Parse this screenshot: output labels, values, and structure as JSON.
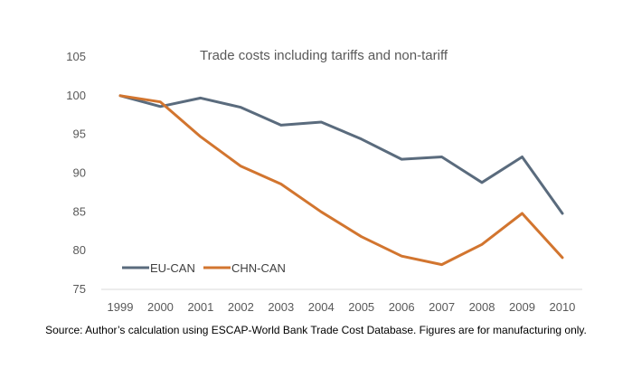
{
  "chart_data": {
    "type": "line",
    "title": "Trade costs including tariffs and non-tariff",
    "xlabel": "",
    "ylabel": "",
    "categories": [
      "1999",
      "2000",
      "2001",
      "2002",
      "2003",
      "2004",
      "2005",
      "2006",
      "2007",
      "2008",
      "2009",
      "2010"
    ],
    "ylim": [
      75,
      105
    ],
    "yticks": [
      75,
      80,
      85,
      90,
      95,
      100,
      105
    ],
    "grid": false,
    "legend_position": "bottom-left",
    "series": [
      {
        "name": "EU-CAN",
        "color": "#5a6b7d",
        "values": [
          100,
          98.6,
          99.7,
          98.5,
          96.2,
          96.6,
          94.4,
          91.8,
          92.1,
          88.8,
          92.1,
          84.8
        ]
      },
      {
        "name": "CHN-CAN",
        "color": "#d2752f",
        "values": [
          100,
          99.2,
          94.7,
          90.9,
          88.6,
          85.0,
          81.8,
          79.3,
          78.2,
          80.8,
          84.8,
          79.1
        ]
      }
    ]
  },
  "source_note": "Source: Author’s calculation using ESCAP-World Bank Trade Cost Database. Figures are for manufacturing only."
}
